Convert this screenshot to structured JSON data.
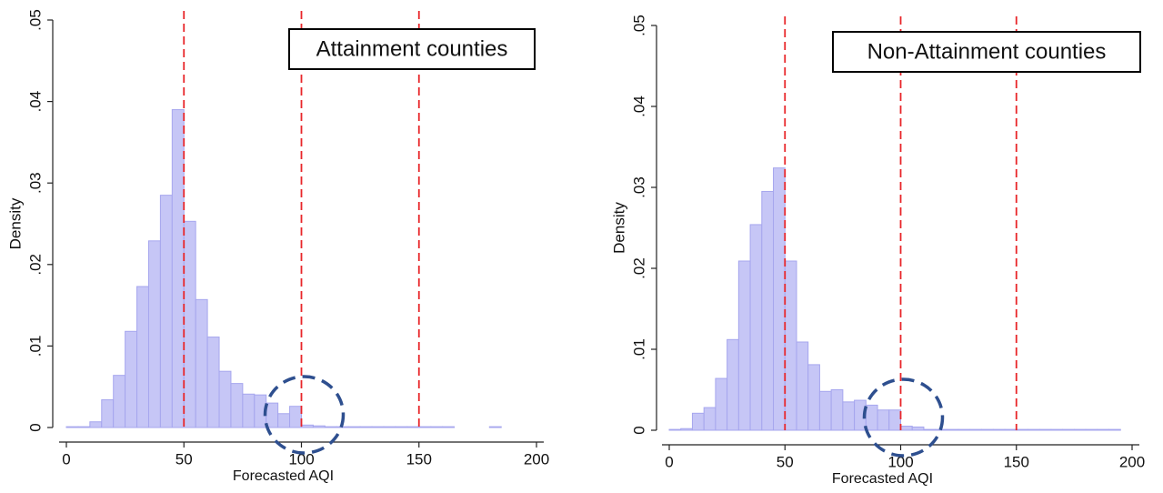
{
  "chart_data": [
    {
      "type": "histogram",
      "annotation": "Attainment counties",
      "xlabel": "Forecasted AQI",
      "ylabel": "Density",
      "color": "#c6c6f6",
      "bins": [
        0,
        5,
        10,
        15,
        20,
        25,
        30,
        35,
        40,
        45,
        50,
        55,
        60,
        65,
        70,
        75,
        80,
        85,
        90,
        95,
        100,
        105,
        110,
        115,
        120,
        125,
        130,
        135,
        140,
        145,
        150,
        155,
        160,
        165,
        170,
        175,
        180,
        185,
        190
      ],
      "values": [
        0.0001,
        0.0001,
        0.0007,
        0.0034,
        0.0064,
        0.0118,
        0.0173,
        0.0229,
        0.0285,
        0.039,
        0.0253,
        0.0157,
        0.0111,
        0.0069,
        0.0054,
        0.0041,
        0.004,
        0.003,
        0.0017,
        0.0026,
        0.0003,
        0.0002,
        0.0001,
        0.0001,
        0.0001,
        0.0001,
        0.0001,
        0.0001,
        0.0001,
        0.0001,
        0.0001,
        0.0001,
        0.0001,
        0,
        0,
        0,
        0.0001,
        0
      ],
      "xlim": [
        0,
        200
      ],
      "xticks": [
        0,
        50,
        100,
        150,
        200
      ],
      "ylim": [
        0,
        0.05
      ],
      "yticks": [
        0,
        {
          "value": 0.01,
          "label": ".01"
        },
        {
          "value": 0.02,
          "label": ".02"
        },
        {
          "value": 0.03,
          "label": ".03"
        },
        {
          "value": 0.04,
          "label": ".04"
        },
        {
          "value": 0.05,
          "label": ".05"
        }
      ],
      "reference_lines": [
        50,
        100,
        150
      ],
      "reference_color": "#e8262a"
    },
    {
      "type": "histogram",
      "annotation": "Non-Attainment counties",
      "xlabel": "Forecasted AQI",
      "ylabel": "Density",
      "color": "#c6c6f6",
      "bins": [
        0,
        5,
        10,
        15,
        20,
        25,
        30,
        35,
        40,
        45,
        50,
        55,
        60,
        65,
        70,
        75,
        80,
        85,
        90,
        95,
        100,
        105,
        110,
        115,
        120,
        125,
        130,
        135,
        140,
        145,
        150,
        155,
        160,
        165,
        170,
        175,
        180,
        185,
        190,
        195
      ],
      "values": [
        0.0001,
        0.0002,
        0.0021,
        0.0028,
        0.0064,
        0.0112,
        0.0209,
        0.0254,
        0.0295,
        0.0324,
        0.0209,
        0.0109,
        0.0081,
        0.0048,
        0.005,
        0.0035,
        0.0037,
        0.0031,
        0.0025,
        0.0025,
        0.0005,
        0.0004,
        0.0001,
        0.0001,
        0.0001,
        0.0001,
        0.0001,
        0.0001,
        0.0001,
        0.0001,
        0.0001,
        0.0001,
        0.0001,
        0.0001,
        0.0001,
        0.0001,
        0.0001,
        0.0001,
        0.0001
      ],
      "xlim": [
        0,
        200
      ],
      "xticks": [
        0,
        50,
        100,
        150,
        200
      ],
      "ylim": [
        0,
        0.05
      ],
      "yticks": [
        0,
        {
          "value": 0.01,
          "label": ".01"
        },
        {
          "value": 0.02,
          "label": ".02"
        },
        {
          "value": 0.03,
          "label": ".03"
        },
        {
          "value": 0.04,
          "label": ".04"
        },
        {
          "value": 0.05,
          "label": ".05"
        }
      ],
      "reference_lines": [
        50,
        100,
        150
      ],
      "reference_color": "#e8262a"
    }
  ]
}
